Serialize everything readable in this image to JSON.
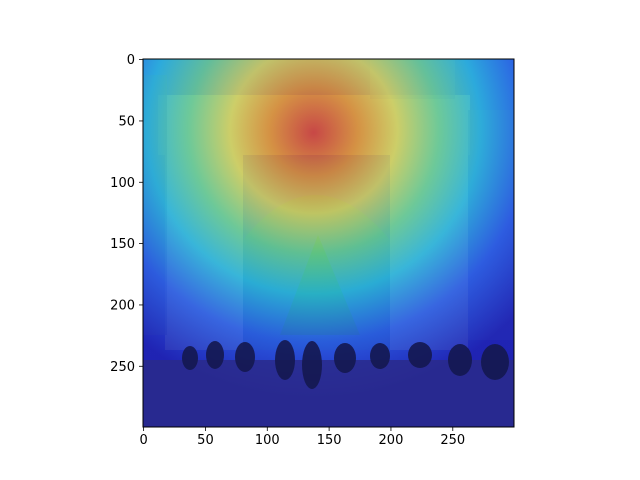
{
  "chart_data": {
    "type": "heatmap",
    "description_of_image": "image with heatmap overlay",
    "title": "",
    "xlabel": "",
    "ylabel": "",
    "xlim": [
      0,
      299
    ],
    "ylim": [
      299,
      0
    ],
    "x_ticks": [
      0,
      50,
      100,
      150,
      200,
      250
    ],
    "y_ticks": [
      0,
      50,
      100,
      150,
      200,
      250
    ],
    "colormap": "jet",
    "heat_peak": {
      "x": 145,
      "y": 70,
      "level": 1.0
    },
    "heat_levels": [
      {
        "level": 0.9,
        "color": "#e8281e"
      },
      {
        "level": 0.75,
        "color": "#f7a11a"
      },
      {
        "level": 0.6,
        "color": "#f3e94a"
      },
      {
        "level": 0.45,
        "color": "#7ee07a"
      },
      {
        "level": 0.3,
        "color": "#25d6d6"
      },
      {
        "level": 0.15,
        "color": "#2a6ff0"
      },
      {
        "level": 0.0,
        "color": "#1a1fb5"
      }
    ],
    "grid": false,
    "legend": "none"
  }
}
